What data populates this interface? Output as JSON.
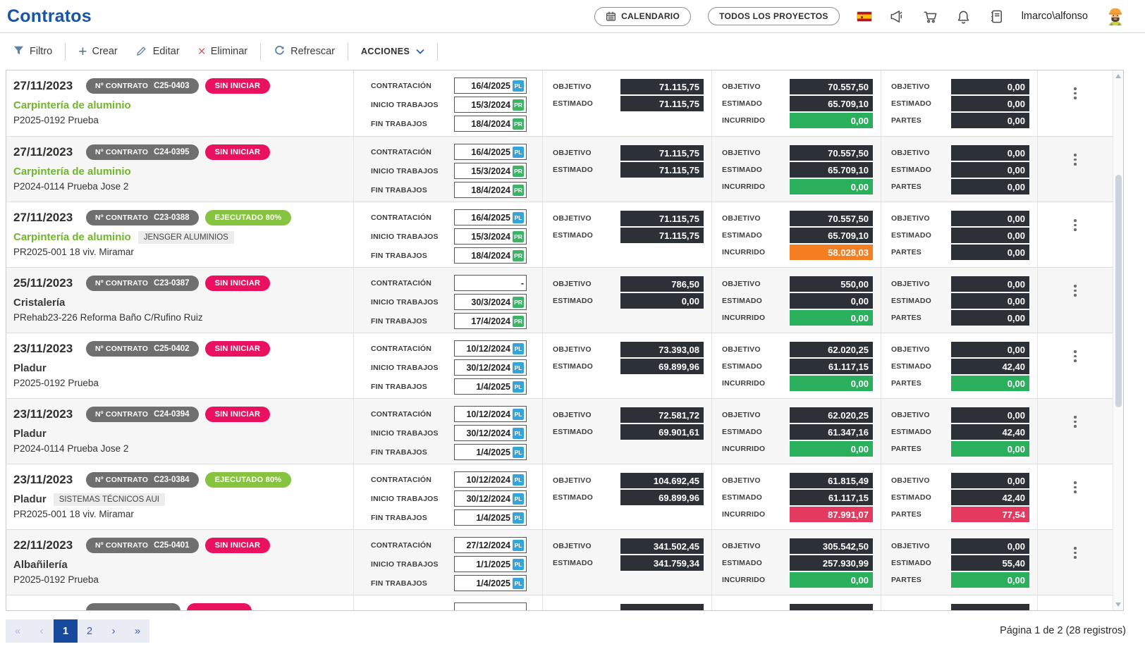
{
  "header": {
    "title": "Contratos",
    "calendar_button": "CALENDARIO",
    "projects_button": "TODOS LOS PROYECTOS",
    "user": "lmarco\\alfonso",
    "icons": [
      "spain-flag-icon",
      "megaphone-icon",
      "cart-icon",
      "bell-icon",
      "journal-icon",
      "avatar"
    ]
  },
  "toolbar": {
    "filter_label": "Filtro",
    "create_label": "Crear",
    "edit_label": "Editar",
    "delete_label": "Eliminar",
    "refresh_label": "Refrescar",
    "actions_label": "ACCIONES"
  },
  "table": {
    "contract_label": "Nº CONTRATO",
    "date_labels": [
      "CONTRATACIÓN",
      "INICIO TRABAJOS",
      "FIN TRABAJOS"
    ],
    "rows": [
      {
        "date": "27/11/2023",
        "contract_number": "C25-0403",
        "status": "SIN INICIAR",
        "status_color": "pink",
        "name": "Carpintería de aluminio",
        "name_color": "green",
        "tag": null,
        "project": "P2025-0192 Prueba",
        "dates": [
          {
            "value": "16/4/2025",
            "badge": "PL"
          },
          {
            "value": "15/3/2024",
            "badge": "PR"
          },
          {
            "value": "18/4/2024",
            "badge": "PR"
          }
        ],
        "group1": [
          {
            "label": "OBJETIVO",
            "value": "71.115,75",
            "color": "dark"
          },
          {
            "label": "ESTIMADO",
            "value": "71.115,75",
            "color": "dark"
          }
        ],
        "group2": [
          {
            "label": "OBJETIVO",
            "value": "70.557,50",
            "color": "dark"
          },
          {
            "label": "ESTIMADO",
            "value": "65.709,10",
            "color": "dark"
          },
          {
            "label": "INCURRIDO",
            "value": "0,00",
            "color": "green"
          }
        ],
        "group3": [
          {
            "label": "OBJETIVO",
            "value": "0,00",
            "color": "dark"
          },
          {
            "label": "ESTIMADO",
            "value": "0,00",
            "color": "dark"
          },
          {
            "label": "PARTES",
            "value": "0,00",
            "color": "dark"
          }
        ]
      },
      {
        "date": "27/11/2023",
        "contract_number": "C24-0395",
        "status": "SIN INICIAR",
        "status_color": "pink",
        "name": "Carpintería de aluminio",
        "name_color": "green",
        "tag": null,
        "project": "P2024-0114 Prueba Jose 2",
        "dates": [
          {
            "value": "16/4/2025",
            "badge": "PL"
          },
          {
            "value": "15/3/2024",
            "badge": "PR"
          },
          {
            "value": "18/4/2024",
            "badge": "PR"
          }
        ],
        "group1": [
          {
            "label": "OBJETIVO",
            "value": "71.115,75",
            "color": "dark"
          },
          {
            "label": "ESTIMADO",
            "value": "71.115,75",
            "color": "dark"
          }
        ],
        "group2": [
          {
            "label": "OBJETIVO",
            "value": "70.557,50",
            "color": "dark"
          },
          {
            "label": "ESTIMADO",
            "value": "65.709,10",
            "color": "dark"
          },
          {
            "label": "INCURRIDO",
            "value": "0,00",
            "color": "green"
          }
        ],
        "group3": [
          {
            "label": "OBJETIVO",
            "value": "0,00",
            "color": "dark"
          },
          {
            "label": "ESTIMADO",
            "value": "0,00",
            "color": "dark"
          },
          {
            "label": "PARTES",
            "value": "0,00",
            "color": "dark"
          }
        ]
      },
      {
        "date": "27/11/2023",
        "contract_number": "C23-0388",
        "status": "EJECUTADO 80%",
        "status_color": "green",
        "name": "Carpintería de aluminio",
        "name_color": "green",
        "tag": "JENSGER ALUMINIOS",
        "project": "PR2025-001 18 viv. Miramar",
        "dates": [
          {
            "value": "16/4/2025",
            "badge": "PL"
          },
          {
            "value": "15/3/2024",
            "badge": "PR"
          },
          {
            "value": "18/4/2024",
            "badge": "PR"
          }
        ],
        "group1": [
          {
            "label": "OBJETIVO",
            "value": "71.115,75",
            "color": "dark"
          },
          {
            "label": "ESTIMADO",
            "value": "71.115,75",
            "color": "dark"
          }
        ],
        "group2": [
          {
            "label": "OBJETIVO",
            "value": "70.557,50",
            "color": "dark"
          },
          {
            "label": "ESTIMADO",
            "value": "65.709,10",
            "color": "dark"
          },
          {
            "label": "INCURRIDO",
            "value": "58.028,03",
            "color": "orange"
          }
        ],
        "group3": [
          {
            "label": "OBJETIVO",
            "value": "0,00",
            "color": "dark"
          },
          {
            "label": "ESTIMADO",
            "value": "0,00",
            "color": "dark"
          },
          {
            "label": "PARTES",
            "value": "0,00",
            "color": "dark"
          }
        ]
      },
      {
        "date": "25/11/2023",
        "contract_number": "C23-0387",
        "status": "SIN INICIAR",
        "status_color": "pink",
        "name": "Cristalería",
        "name_color": "dark",
        "tag": null,
        "project": "PRehab23-226 Reforma Baño C/Rufino Ruiz",
        "dates": [
          {
            "value": "-",
            "badge": null
          },
          {
            "value": "30/3/2024",
            "badge": "PR"
          },
          {
            "value": "17/4/2024",
            "badge": "PR"
          }
        ],
        "group1": [
          {
            "label": "OBJETIVO",
            "value": "786,50",
            "color": "dark"
          },
          {
            "label": "ESTIMADO",
            "value": "0,00",
            "color": "dark"
          }
        ],
        "group2": [
          {
            "label": "OBJETIVO",
            "value": "550,00",
            "color": "dark"
          },
          {
            "label": "ESTIMADO",
            "value": "0,00",
            "color": "dark"
          },
          {
            "label": "INCURRIDO",
            "value": "0,00",
            "color": "green"
          }
        ],
        "group3": [
          {
            "label": "OBJETIVO",
            "value": "0,00",
            "color": "dark"
          },
          {
            "label": "ESTIMADO",
            "value": "0,00",
            "color": "dark"
          },
          {
            "label": "PARTES",
            "value": "0,00",
            "color": "dark"
          }
        ]
      },
      {
        "date": "23/11/2023",
        "contract_number": "C25-0402",
        "status": "SIN INICIAR",
        "status_color": "pink",
        "name": "Pladur",
        "name_color": "dark",
        "tag": null,
        "project": "P2025-0192 Prueba",
        "dates": [
          {
            "value": "10/12/2024",
            "badge": "PL"
          },
          {
            "value": "30/12/2024",
            "badge": "PL"
          },
          {
            "value": "1/4/2025",
            "badge": "PL"
          }
        ],
        "group1": [
          {
            "label": "OBJETIVO",
            "value": "73.393,08",
            "color": "dark"
          },
          {
            "label": "ESTIMADO",
            "value": "69.899,96",
            "color": "dark"
          }
        ],
        "group2": [
          {
            "label": "OBJETIVO",
            "value": "62.020,25",
            "color": "dark"
          },
          {
            "label": "ESTIMADO",
            "value": "61.117,15",
            "color": "dark"
          },
          {
            "label": "INCURRIDO",
            "value": "0,00",
            "color": "green"
          }
        ],
        "group3": [
          {
            "label": "OBJETIVO",
            "value": "0,00",
            "color": "dark"
          },
          {
            "label": "ESTIMADO",
            "value": "42,40",
            "color": "dark"
          },
          {
            "label": "PARTES",
            "value": "0,00",
            "color": "green"
          }
        ]
      },
      {
        "date": "23/11/2023",
        "contract_number": "C24-0394",
        "status": "SIN INICIAR",
        "status_color": "pink",
        "name": "Pladur",
        "name_color": "dark",
        "tag": null,
        "project": "P2024-0114 Prueba Jose 2",
        "dates": [
          {
            "value": "10/12/2024",
            "badge": "PL"
          },
          {
            "value": "30/12/2024",
            "badge": "PL"
          },
          {
            "value": "1/4/2025",
            "badge": "PL"
          }
        ],
        "group1": [
          {
            "label": "OBJETIVO",
            "value": "72.581,72",
            "color": "dark"
          },
          {
            "label": "ESTIMADO",
            "value": "69.901,61",
            "color": "dark"
          }
        ],
        "group2": [
          {
            "label": "OBJETIVO",
            "value": "62.020,25",
            "color": "dark"
          },
          {
            "label": "ESTIMADO",
            "value": "61.347,16",
            "color": "dark"
          },
          {
            "label": "INCURRIDO",
            "value": "0,00",
            "color": "green"
          }
        ],
        "group3": [
          {
            "label": "OBJETIVO",
            "value": "0,00",
            "color": "dark"
          },
          {
            "label": "ESTIMADO",
            "value": "42,40",
            "color": "dark"
          },
          {
            "label": "PARTES",
            "value": "0,00",
            "color": "green"
          }
        ]
      },
      {
        "date": "23/11/2023",
        "contract_number": "C23-0384",
        "status": "EJECUTADO 80%",
        "status_color": "green",
        "name": "Pladur",
        "name_color": "dark",
        "tag": "SISTEMAS TÉCNICOS AUI",
        "project": "PR2025-001 18 viv. Miramar",
        "dates": [
          {
            "value": "10/12/2024",
            "badge": "PL"
          },
          {
            "value": "30/12/2024",
            "badge": "PL"
          },
          {
            "value": "1/4/2025",
            "badge": "PL"
          }
        ],
        "group1": [
          {
            "label": "OBJETIVO",
            "value": "104.692,45",
            "color": "dark"
          },
          {
            "label": "ESTIMADO",
            "value": "69.899,96",
            "color": "dark"
          }
        ],
        "group2": [
          {
            "label": "OBJETIVO",
            "value": "61.815,49",
            "color": "dark"
          },
          {
            "label": "ESTIMADO",
            "value": "61.117,15",
            "color": "dark"
          },
          {
            "label": "INCURRIDO",
            "value": "87.991,07",
            "color": "red"
          }
        ],
        "group3": [
          {
            "label": "OBJETIVO",
            "value": "0,00",
            "color": "dark"
          },
          {
            "label": "ESTIMADO",
            "value": "42,40",
            "color": "dark"
          },
          {
            "label": "PARTES",
            "value": "77,54",
            "color": "red"
          }
        ]
      },
      {
        "date": "22/11/2023",
        "contract_number": "C25-0401",
        "status": "SIN INICIAR",
        "status_color": "pink",
        "name": "Albañilería",
        "name_color": "dark",
        "tag": null,
        "project": "P2025-0192 Prueba",
        "dates": [
          {
            "value": "27/12/2024",
            "badge": "PL"
          },
          {
            "value": "1/1/2025",
            "badge": "PL"
          },
          {
            "value": "1/4/2025",
            "badge": "PL"
          }
        ],
        "group1": [
          {
            "label": "OBJETIVO",
            "value": "341.502,45",
            "color": "dark"
          },
          {
            "label": "ESTIMADO",
            "value": "341.759,34",
            "color": "dark"
          }
        ],
        "group2": [
          {
            "label": "OBJETIVO",
            "value": "305.542,50",
            "color": "dark"
          },
          {
            "label": "ESTIMADO",
            "value": "257.930,99",
            "color": "dark"
          },
          {
            "label": "INCURRIDO",
            "value": "0,00",
            "color": "green"
          }
        ],
        "group3": [
          {
            "label": "OBJETIVO",
            "value": "0,00",
            "color": "dark"
          },
          {
            "label": "ESTIMADO",
            "value": "55,40",
            "color": "dark"
          },
          {
            "label": "PARTES",
            "value": "0,00",
            "color": "green"
          }
        ]
      }
    ],
    "partial_row": {
      "visible": true,
      "status_color": "pink"
    }
  },
  "pagination": {
    "first": "«",
    "prev": "‹",
    "pages": [
      "1",
      "2"
    ],
    "active_page": "1",
    "next": "›",
    "last": "»"
  },
  "footer": {
    "summary": "Página 1 de 2 (28 registros)"
  },
  "colors": {
    "accent_blue": "#1854a8",
    "status_pink": "#ea1160",
    "status_green": "#86c440",
    "contract_badge_gray": "#6f6f6f",
    "box_dark": "#2c3137",
    "box_green": "#2aaf5d",
    "box_orange": "#f57e20",
    "box_red": "#e53a60",
    "badge_pl_blue": "#35a4dd",
    "badge_pr_green": "#3db368",
    "name_green": "#71b52c",
    "pager_active_blue": "#17499c"
  }
}
